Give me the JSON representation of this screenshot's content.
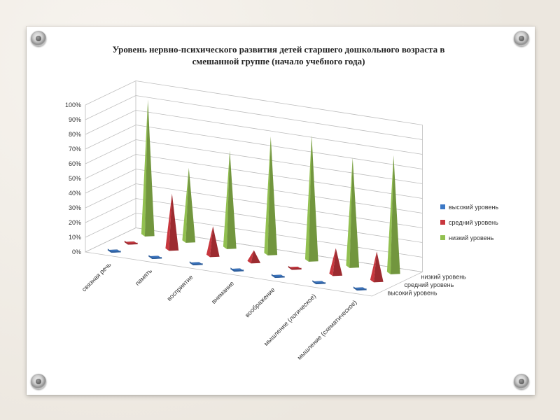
{
  "chart_data": {
    "type": "bar",
    "title": "Уровень нервно-психического развития детей старшего дошкольного возраста в",
    "subtitle": "смешанной группе (начало учебного года)",
    "categories": [
      "связная речь",
      "память",
      "восприятие",
      "внимание",
      "воображение",
      "мышление (логическое)",
      "мышление (схематическое)"
    ],
    "series": [
      {
        "name": "низкий уровень",
        "values": [
          92,
          50,
          66,
          80,
          85,
          74,
          80
        ],
        "color": "#92c050"
      },
      {
        "name": "средний уровень",
        "values": [
          2,
          38,
          20,
          8,
          3,
          18,
          20
        ],
        "color": "#c8373e"
      },
      {
        "name": "высокий уровень",
        "values": [
          2,
          2,
          2,
          2,
          2,
          2,
          2
        ],
        "color": "#3c78c6"
      }
    ],
    "depth_labels": [
      "низкий уровень",
      "средний уровень",
      "высокий уровень"
    ],
    "legend_entries": [
      "высокий уровень",
      "средний уровень",
      "низкий уровень"
    ],
    "y_ticks": [
      "0%",
      "10%",
      "20%",
      "30%",
      "40%",
      "50%",
      "60%",
      "70%",
      "80%",
      "90%",
      "100%"
    ],
    "ylim": [
      0,
      100
    ],
    "grid": true,
    "legend_position": "right"
  }
}
